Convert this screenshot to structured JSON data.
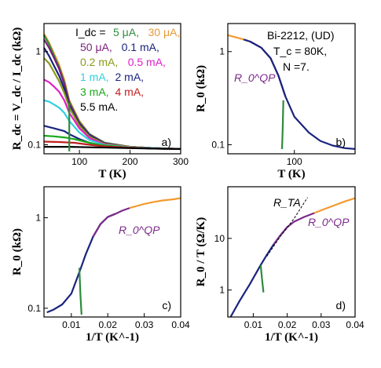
{
  "colors": {
    "navy": "#1a237e",
    "orange": "#f39a2e",
    "purple": "#7b2a8a",
    "green": "#2e8b3c",
    "frame": "#000"
  },
  "chart_data": [
    {
      "panel": "a)",
      "type": "line",
      "xlabel": "T (K)",
      "ylabel": "R_dc = V_dc / I_dc (kΩ)",
      "xlim": [
        30,
        300
      ],
      "ylim": [
        0.08,
        2.0
      ],
      "yscale": "log",
      "xticks": [
        100,
        200,
        300
      ],
      "yticks": [
        0.1,
        1
      ],
      "legend_title": "I_dc =",
      "legend_items": [
        {
          "text": "5 μA,",
          "color": "#2e8b3c"
        },
        {
          "text": "30 μA,",
          "color": "#e69a3a"
        },
        {
          "text": "50 μA,",
          "color": "#7b1f7a"
        },
        {
          "text": "0.1 mA,",
          "color": "#1a237e"
        },
        {
          "text": "0.2 mA,",
          "color": "#8a9a1a"
        },
        {
          "text": "0.5 mA,",
          "color": "#e020c8"
        },
        {
          "text": "1 mA,",
          "color": "#30d0e0"
        },
        {
          "text": "2 mA,",
          "color": "#1a237e"
        },
        {
          "text": "3 mA,",
          "color": "#18a818"
        },
        {
          "text": "4 mA,",
          "color": "#c02020"
        },
        {
          "text": "5.5 mA.",
          "color": "#000000"
        }
      ],
      "series": [
        {
          "color": "#f39a2e",
          "x": [
            30,
            40,
            50,
            60,
            70,
            80,
            100,
            120,
            150,
            200,
            250,
            300
          ],
          "y": [
            1.55,
            1.25,
            0.95,
            0.72,
            0.5,
            0.3,
            0.18,
            0.13,
            0.105,
            0.095,
            0.092,
            0.09
          ]
        },
        {
          "color": "#2e8b3c",
          "x": [
            30,
            40,
            50,
            60,
            70,
            80,
            100,
            120,
            150,
            200,
            250,
            300
          ],
          "y": [
            1.5,
            1.2,
            0.9,
            0.68,
            0.47,
            0.29,
            0.175,
            0.13,
            0.105,
            0.095,
            0.092,
            0.09
          ]
        },
        {
          "color": "#7b1f7a",
          "x": [
            30,
            40,
            50,
            60,
            70,
            80,
            100,
            120,
            150,
            200,
            250,
            300
          ],
          "y": [
            1.35,
            1.1,
            0.85,
            0.65,
            0.45,
            0.28,
            0.17,
            0.128,
            0.104,
            0.095,
            0.092,
            0.09
          ]
        },
        {
          "color": "#1a237e",
          "x": [
            30,
            40,
            50,
            60,
            70,
            80,
            100,
            120,
            150,
            200,
            250,
            300
          ],
          "y": [
            1.1,
            0.9,
            0.7,
            0.55,
            0.4,
            0.26,
            0.165,
            0.125,
            0.103,
            0.095,
            0.092,
            0.09
          ]
        },
        {
          "color": "#8a9a1a",
          "x": [
            30,
            40,
            50,
            60,
            70,
            80,
            100,
            120,
            150,
            200,
            250,
            300
          ],
          "y": [
            0.85,
            0.75,
            0.6,
            0.48,
            0.36,
            0.25,
            0.16,
            0.122,
            0.102,
            0.095,
            0.092,
            0.09
          ]
        },
        {
          "color": "#e020c8",
          "x": [
            30,
            40,
            50,
            60,
            70,
            80,
            100,
            120,
            150,
            200,
            250,
            300
          ],
          "y": [
            0.5,
            0.47,
            0.42,
            0.37,
            0.3,
            0.22,
            0.15,
            0.118,
            0.1,
            0.094,
            0.092,
            0.09
          ]
        },
        {
          "color": "#30d0e0",
          "x": [
            30,
            40,
            50,
            60,
            70,
            80,
            100,
            120,
            150,
            200,
            250,
            300
          ],
          "y": [
            0.3,
            0.29,
            0.27,
            0.25,
            0.22,
            0.18,
            0.135,
            0.112,
            0.099,
            0.094,
            0.092,
            0.09
          ]
        },
        {
          "color": "#1a237e",
          "x": [
            30,
            40,
            50,
            60,
            70,
            80,
            100,
            120,
            150,
            200,
            250,
            300
          ],
          "y": [
            0.16,
            0.155,
            0.15,
            0.145,
            0.14,
            0.13,
            0.115,
            0.105,
            0.097,
            0.093,
            0.091,
            0.09
          ]
        },
        {
          "color": "#18a818",
          "x": [
            30,
            50,
            70,
            90,
            110,
            130,
            150,
            200,
            250,
            300
          ],
          "y": [
            0.125,
            0.123,
            0.12,
            0.115,
            0.108,
            0.102,
            0.098,
            0.093,
            0.091,
            0.09
          ]
        },
        {
          "color": "#c02020",
          "x": [
            30,
            60,
            90,
            120,
            150,
            200,
            250,
            300
          ],
          "y": [
            0.108,
            0.107,
            0.105,
            0.1,
            0.096,
            0.093,
            0.091,
            0.09
          ]
        },
        {
          "color": "#000000",
          "x": [
            30,
            80,
            120,
            160,
            200,
            250,
            300
          ],
          "y": [
            0.095,
            0.095,
            0.094,
            0.093,
            0.092,
            0.091,
            0.09
          ]
        },
        {
          "color": "#2e8b3c",
          "x": [
            80,
            80
          ],
          "y": [
            0.28,
            0.085
          ]
        }
      ]
    },
    {
      "panel": "b)",
      "type": "line",
      "xlabel": "T (K)",
      "ylabel": "R_0 (kΩ)",
      "xscale": "log",
      "yscale": "log",
      "xlim": [
        30,
        300
      ],
      "ylim": [
        0.08,
        2.0
      ],
      "xticks": [
        100
      ],
      "yticks": [
        0.1,
        1
      ],
      "annotations": [
        "Bi-2212, (UD)",
        "T_c = 80K,",
        "N =7.",
        "R_0^QP"
      ],
      "series": [
        {
          "name": "orange",
          "color": "#f39a2e",
          "x": [
            30,
            35,
            40,
            45
          ],
          "y": [
            1.5,
            1.42,
            1.35,
            1.28
          ]
        },
        {
          "name": "R_0^QP",
          "color": "#7b2a8a",
          "x": [
            45,
            55,
            65,
            75,
            85
          ],
          "y": [
            1.28,
            1.1,
            0.85,
            0.55,
            0.33
          ]
        },
        {
          "name": "navy",
          "color": "#1a237e",
          "x": [
            40,
            45,
            55,
            65,
            75,
            85,
            100,
            130,
            160,
            200,
            250,
            300
          ],
          "y": [
            1.35,
            1.28,
            1.1,
            0.85,
            0.55,
            0.33,
            0.2,
            0.135,
            0.11,
            0.098,
            0.092,
            0.09
          ]
        },
        {
          "name": "green",
          "color": "#2e8b3c",
          "x": [
            82,
            81,
            80
          ],
          "y": [
            0.3,
            0.15,
            0.09
          ]
        }
      ]
    },
    {
      "panel": "c)",
      "type": "line",
      "xlabel": "1/T (K^-1)",
      "ylabel": "R_0 (kΩ)",
      "xlim": [
        0.0025,
        0.04
      ],
      "ylim": [
        0.08,
        2.2
      ],
      "yscale": "log",
      "xticks": [
        0.01,
        0.02,
        0.03,
        0.04
      ],
      "yticks": [
        0.1,
        1
      ],
      "annotations": [
        "R_0^QP"
      ],
      "series": [
        {
          "name": "navy",
          "color": "#1a237e",
          "x": [
            0.0033,
            0.005,
            0.0075,
            0.01,
            0.0125,
            0.014,
            0.016,
            0.018,
            0.02,
            0.022
          ],
          "y": [
            0.09,
            0.096,
            0.11,
            0.145,
            0.27,
            0.4,
            0.62,
            0.85,
            1.02,
            1.1
          ]
        },
        {
          "name": "R_0^QP",
          "color": "#7b2a8a",
          "x": [
            0.016,
            0.018,
            0.02,
            0.022,
            0.024,
            0.026
          ],
          "y": [
            0.62,
            0.85,
            1.02,
            1.1,
            1.2,
            1.28
          ]
        },
        {
          "name": "orange",
          "color": "#f39a2e",
          "x": [
            0.026,
            0.028,
            0.03,
            0.032,
            0.035,
            0.038,
            0.04
          ],
          "y": [
            1.28,
            1.35,
            1.42,
            1.48,
            1.55,
            1.6,
            1.65
          ]
        },
        {
          "name": "green",
          "color": "#2e8b3c",
          "x": [
            0.0122,
            0.0125,
            0.0128
          ],
          "y": [
            0.28,
            0.14,
            0.085
          ]
        }
      ]
    },
    {
      "panel": "d)",
      "type": "line",
      "xlabel": "1/T (K^-1)",
      "ylabel": "R_0 / T (Ω/K)",
      "xlim": [
        0.0025,
        0.04
      ],
      "ylim": [
        0.3,
        100
      ],
      "yscale": "log",
      "xticks": [
        0.01,
        0.02,
        0.03,
        0.04
      ],
      "yticks": [
        1,
        10
      ],
      "annotations": [
        "R_TA",
        "R_0^QP"
      ],
      "series": [
        {
          "name": "navy",
          "color": "#1a237e",
          "x": [
            0.0033,
            0.006,
            0.009,
            0.012,
            0.014,
            0.016,
            0.018,
            0.02
          ],
          "y": [
            0.3,
            0.62,
            1.3,
            2.9,
            4.8,
            7.6,
            11.5,
            16.5
          ]
        },
        {
          "name": "R_0^QP",
          "color": "#7b2a8a",
          "x": [
            0.016,
            0.018,
            0.02,
            0.022,
            0.025,
            0.028
          ],
          "y": [
            7.6,
            11.5,
            16.5,
            21,
            26,
            31
          ]
        },
        {
          "name": "orange",
          "color": "#f39a2e",
          "x": [
            0.028,
            0.031,
            0.034,
            0.037,
            0.04
          ],
          "y": [
            31,
            37,
            44,
            52,
            60
          ]
        },
        {
          "name": "R_TA",
          "color": "#000000",
          "dashed": true,
          "x": [
            0.014,
            0.018,
            0.022,
            0.026
          ],
          "y": [
            4.5,
            11,
            24,
            62
          ]
        },
        {
          "name": "green",
          "color": "#2e8b3c",
          "x": [
            0.0122,
            0.0126,
            0.013
          ],
          "y": [
            3.0,
            1.6,
            0.9
          ]
        }
      ]
    }
  ]
}
